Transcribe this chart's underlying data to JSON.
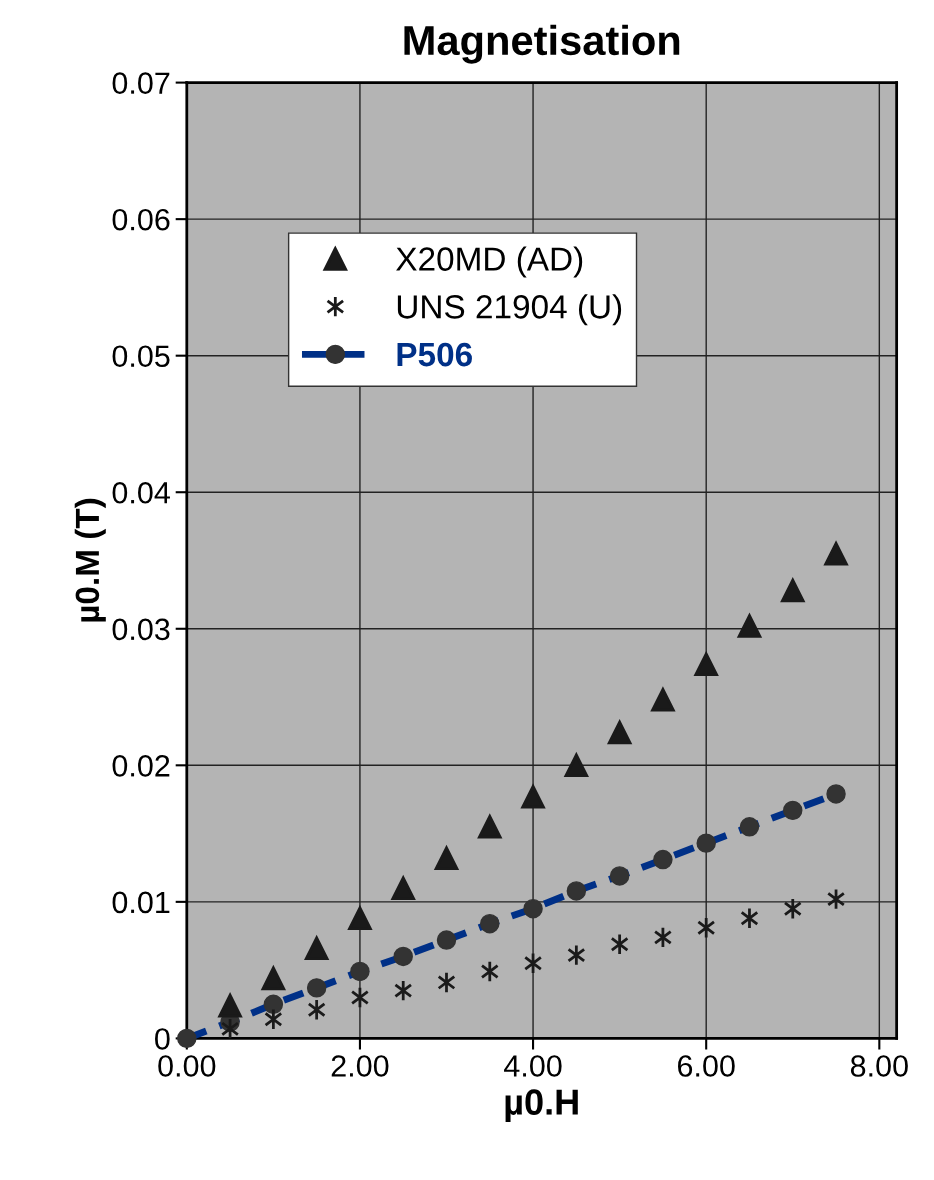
{
  "chart_data": {
    "type": "scatter",
    "title": "Magnetisation",
    "xlabel": "µ0.H",
    "ylabel": "µ0.M (T)",
    "x": [
      0,
      0.5,
      1,
      1.5,
      2,
      2.5,
      3,
      3.5,
      4,
      4.5,
      5,
      5.5,
      6,
      6.5,
      7,
      7.5
    ],
    "series": [
      {
        "name": "X20MD (AD)",
        "color": "#1a1a1a",
        "marker": "triangle",
        "values": [
          null,
          0.0024,
          0.0044,
          0.0066,
          0.0088,
          0.011,
          0.0132,
          0.0155,
          0.0177,
          0.02,
          0.0224,
          0.0248,
          0.0274,
          0.0302,
          0.0328,
          0.0355
        ]
      },
      {
        "name": "UNS 21904 (U)",
        "color": "#1a1a1a",
        "marker": "cross",
        "values": [
          null,
          0.0007,
          0.0014,
          0.0021,
          0.003,
          0.0035,
          0.0041,
          0.0049,
          0.0055,
          0.0061,
          0.0069,
          0.0074,
          0.0081,
          0.0088,
          0.0095,
          0.0102
        ]
      },
      {
        "name": "P506",
        "type": "line",
        "color": "#003087",
        "marker": "circle",
        "line_style": "dashed",
        "values": [
          0,
          0.0012,
          0.0025,
          0.0037,
          0.0049,
          0.006,
          0.0072,
          0.0084,
          0.0095,
          0.0108,
          0.0119,
          0.0131,
          0.0143,
          0.0155,
          0.0167,
          0.0179
        ]
      }
    ],
    "xlim": [
      0,
      8.2
    ],
    "xticks": [
      {
        "value": 0,
        "label": "0.00"
      },
      {
        "value": 2,
        "label": "2.00"
      },
      {
        "value": 4,
        "label": "4.00"
      },
      {
        "value": 6,
        "label": "6.00"
      },
      {
        "value": 8,
        "label": "8.00"
      }
    ],
    "ylim": [
      0,
      0.07
    ],
    "yticks": [
      0,
      0.01,
      0.02,
      0.03,
      0.04,
      0.05,
      0.06,
      0.07
    ],
    "grid": true,
    "legend": "top left"
  }
}
